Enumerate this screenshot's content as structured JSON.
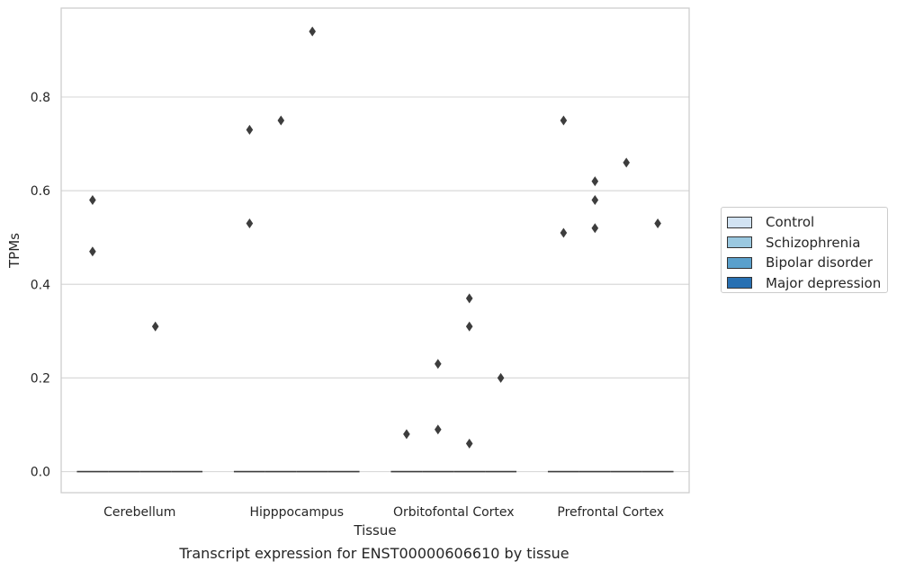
{
  "colors": {
    "background": "#ffffff",
    "grid": "#d9d9d9",
    "frame": "#cccccc",
    "marker": "#3d3d3d",
    "median": "#3d3d3d"
  },
  "legend": {
    "placement": "right",
    "items": [
      {
        "label": "Control",
        "color": "#d2e3f3"
      },
      {
        "label": "Schizophrenia",
        "color": "#9ac8e0"
      },
      {
        "label": "Bipolar disorder",
        "color": "#5aa0cc"
      },
      {
        "label": "Major depression",
        "color": "#2870b2"
      }
    ]
  },
  "caption": "Transcript expression for ENST00000606610 by tissue",
  "chart_data": {
    "type": "box",
    "xlabel": "Tissue",
    "ylabel": "TPMs",
    "ylim": [
      -0.045,
      0.99
    ],
    "yticks": [
      0.0,
      0.2,
      0.4,
      0.6,
      0.8
    ],
    "ytick_labels": [
      "0.0",
      "0.2",
      "0.4",
      "0.6",
      "0.8"
    ],
    "grid": "horizontal",
    "categories": [
      "Cerebellum",
      "Hipppocampus",
      "Orbitofontal Cortex",
      "Prefrontal Cortex"
    ],
    "series": [
      {
        "name": "Control",
        "median": [
          0,
          0,
          0,
          0
        ]
      },
      {
        "name": "Schizophrenia",
        "median": [
          0,
          0,
          0,
          0
        ]
      },
      {
        "name": "Bipolar disorder",
        "median": [
          0,
          0,
          0,
          0
        ]
      },
      {
        "name": "Major depression",
        "median": [
          0,
          0,
          0,
          0
        ]
      }
    ],
    "outliers": [
      {
        "category": "Cerebellum",
        "series": "Control",
        "values": [
          0.58,
          0.47
        ]
      },
      {
        "category": "Cerebellum",
        "series": "Bipolar disorder",
        "values": [
          0.31
        ]
      },
      {
        "category": "Hipppocampus",
        "series": "Control",
        "values": [
          0.73,
          0.53
        ]
      },
      {
        "category": "Hipppocampus",
        "series": "Schizophrenia",
        "values": [
          0.75
        ]
      },
      {
        "category": "Hipppocampus",
        "series": "Bipolar disorder",
        "values": [
          0.94
        ]
      },
      {
        "category": "Orbitofontal Cortex",
        "series": "Control",
        "values": [
          0.08
        ]
      },
      {
        "category": "Orbitofontal Cortex",
        "series": "Schizophrenia",
        "values": [
          0.23,
          0.09
        ]
      },
      {
        "category": "Orbitofontal Cortex",
        "series": "Bipolar disorder",
        "values": [
          0.37,
          0.31,
          0.06
        ]
      },
      {
        "category": "Orbitofontal Cortex",
        "series": "Major depression",
        "values": [
          0.2
        ]
      },
      {
        "category": "Prefrontal Cortex",
        "series": "Control",
        "values": [
          0.75,
          0.51
        ]
      },
      {
        "category": "Prefrontal Cortex",
        "series": "Schizophrenia",
        "values": [
          0.62,
          0.58,
          0.52
        ]
      },
      {
        "category": "Prefrontal Cortex",
        "series": "Bipolar disorder",
        "values": [
          0.66
        ]
      },
      {
        "category": "Prefrontal Cortex",
        "series": "Major depression",
        "values": [
          0.53
        ]
      }
    ]
  }
}
